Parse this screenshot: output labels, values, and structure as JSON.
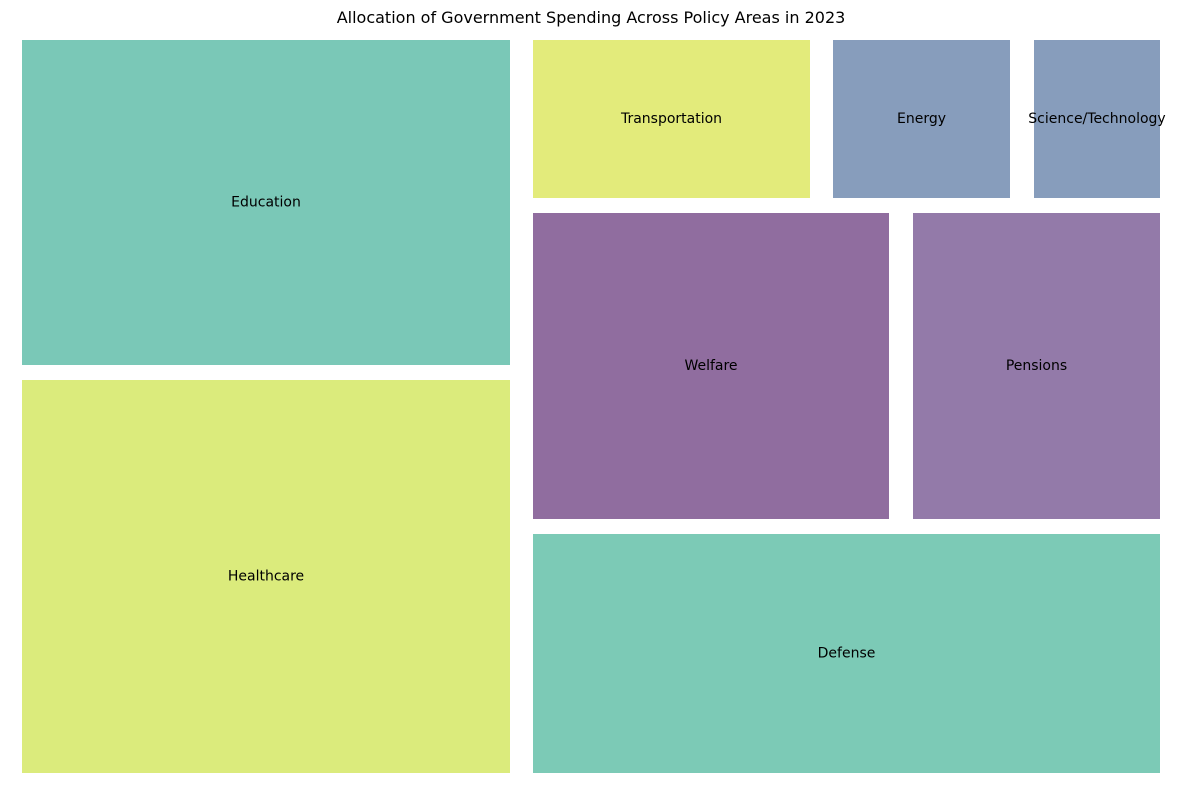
{
  "chart_data": {
    "type": "treemap",
    "title": "Allocation of Government Spending Across Policy Areas in 2023",
    "categories": [
      "Education",
      "Healthcare",
      "Transportation",
      "Energy",
      "Science/Technology",
      "Welfare",
      "Pensions",
      "Defense"
    ],
    "values": [
      16,
      19,
      4.5,
      2.9,
      2.1,
      11.2,
      7.8,
      15.4
    ],
    "colors": [
      "#7ac8b7",
      "#dbeb7c",
      "#e3eb7b",
      "#879dbc",
      "#879dbc",
      "#906d9f",
      "#937aa9",
      "#7ccab6"
    ],
    "grid": false,
    "legend": "none"
  }
}
